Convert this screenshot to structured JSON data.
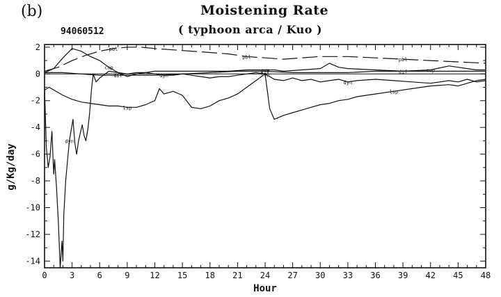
{
  "panel_label": "(b)",
  "id_label": "94060512",
  "chart_data": {
    "type": "line",
    "title": "Moistening Rate",
    "subtitle": "( typhoon arca / Kuo )",
    "xlabel": "Hour",
    "ylabel": "g/Kg/day",
    "xlim": [
      0,
      48
    ],
    "ylim": [
      -14.5,
      2.2
    ],
    "xticks": [
      0,
      3,
      6,
      9,
      12,
      15,
      18,
      21,
      24,
      27,
      30,
      33,
      36,
      39,
      42,
      45,
      48
    ],
    "yticks": [
      2,
      0,
      -2,
      -4,
      -6,
      -8,
      -10,
      -12,
      -14
    ],
    "grid": false,
    "legend": "none",
    "series": [
      {
        "name": "pbl",
        "style": "long-dash",
        "x": [
          0,
          1.5,
          3,
          4.5,
          6,
          7.5,
          9,
          10.5,
          12,
          14,
          16,
          18,
          20,
          22,
          24,
          26,
          28,
          30,
          33,
          36,
          39,
          42,
          45,
          48
        ],
        "y": [
          0.2,
          0.5,
          1.0,
          1.4,
          1.7,
          1.9,
          2.0,
          2.0,
          1.9,
          1.8,
          1.7,
          1.6,
          1.5,
          1.3,
          1.2,
          1.1,
          1.2,
          1.3,
          1.3,
          1.2,
          1.1,
          1.0,
          0.9,
          0.8
        ]
      },
      {
        "name": "cup",
        "style": "solid",
        "x": [
          0,
          1,
          2,
          3,
          4,
          5,
          6,
          7,
          8,
          9,
          10,
          11,
          12,
          14,
          16,
          18,
          20,
          22,
          24,
          25,
          26,
          28,
          30,
          31,
          32,
          33,
          36,
          39,
          42,
          44,
          45,
          46,
          47,
          48
        ],
        "y": [
          0.1,
          0.4,
          1.2,
          1.9,
          1.7,
          1.3,
          1.0,
          0.5,
          0.1,
          0.0,
          0.1,
          0.1,
          0.2,
          0.2,
          0.2,
          0.2,
          0.2,
          0.3,
          0.3,
          0.3,
          0.2,
          0.3,
          0.4,
          0.8,
          0.5,
          0.4,
          0.3,
          0.2,
          0.3,
          0.6,
          0.5,
          0.4,
          0.3,
          0.3
        ]
      },
      {
        "name": "dif",
        "style": "solid",
        "x": [
          0,
          2,
          4,
          6,
          8,
          10,
          12,
          15,
          18,
          21,
          24,
          27,
          30,
          33,
          36,
          39,
          42,
          45,
          48
        ],
        "y": [
          0.1,
          0.1,
          0.0,
          -0.1,
          -0.1,
          -0.1,
          -0.1,
          0.0,
          0.1,
          0.2,
          0.2,
          0.1,
          0.1,
          0.1,
          0.2,
          0.2,
          0.2,
          0.2,
          0.2
        ]
      },
      {
        "name": "lsp",
        "style": "solid",
        "x": [
          0,
          0.5,
          1,
          2,
          3,
          4,
          5,
          6,
          7,
          8,
          9,
          10,
          11,
          12,
          12.5,
          13,
          14,
          15,
          16,
          17,
          18,
          19,
          20,
          21,
          22,
          23,
          24,
          24.5,
          25,
          26,
          27,
          28,
          29,
          30,
          31,
          32,
          33,
          34,
          35,
          36,
          38,
          40,
          42,
          44,
          45,
          46,
          47,
          48
        ],
        "y": [
          -1.2,
          -1.0,
          -1.2,
          -1.6,
          -1.9,
          -2.1,
          -2.2,
          -2.3,
          -2.4,
          -2.4,
          -2.5,
          -2.5,
          -2.3,
          -2.0,
          -1.1,
          -1.5,
          -1.3,
          -1.6,
          -2.5,
          -2.6,
          -2.4,
          -2.0,
          -1.8,
          -1.5,
          -1.0,
          -0.5,
          0.0,
          -2.6,
          -3.4,
          -3.1,
          -2.9,
          -2.7,
          -2.5,
          -2.3,
          -2.2,
          -2.0,
          -1.9,
          -1.7,
          -1.6,
          -1.5,
          -1.3,
          -1.1,
          -0.9,
          -0.8,
          -0.9,
          -0.7,
          -0.5,
          -0.4
        ]
      },
      {
        "name": "dyn",
        "style": "solid",
        "x": [
          0,
          0.2,
          0.4,
          0.6,
          0.8,
          1.0,
          1.1,
          1.3,
          1.5,
          1.7,
          1.9,
          2.0,
          2.1,
          2.3,
          2.5,
          2.7,
          2.9,
          3.1,
          3.3,
          3.5,
          3.7,
          3.9,
          4.1,
          4.3,
          4.5,
          4.7,
          4.9,
          5.1,
          5.3,
          5.6,
          6,
          7,
          8,
          9,
          10,
          11,
          12,
          13,
          14,
          15,
          16,
          17,
          18,
          19,
          20,
          21,
          22,
          23,
          24,
          25,
          26,
          27,
          28,
          29,
          30,
          31,
          32,
          33,
          34,
          36,
          38,
          40,
          42,
          44,
          45,
          46,
          47,
          48
        ],
        "y": [
          -1.0,
          -5.5,
          -7.0,
          -6.2,
          -4.3,
          -7.5,
          -6.4,
          -8.5,
          -11.0,
          -14.5,
          -12.5,
          -14.0,
          -10.5,
          -8.0,
          -6.5,
          -5.0,
          -4.2,
          -3.4,
          -5.2,
          -6.0,
          -5.0,
          -4.4,
          -3.8,
          -4.6,
          -5.0,
          -4.2,
          -3.0,
          -1.2,
          0.0,
          -0.6,
          -0.3,
          0.2,
          0.1,
          -0.2,
          0.0,
          0.1,
          0.0,
          -0.1,
          -0.1,
          0.0,
          -0.1,
          -0.2,
          -0.3,
          -0.2,
          -0.2,
          -0.1,
          0.0,
          0.1,
          0.0,
          -0.4,
          -0.5,
          -0.3,
          -0.5,
          -0.4,
          -0.6,
          -0.5,
          -0.4,
          -0.6,
          -0.5,
          -0.4,
          -0.5,
          -0.6,
          -0.7,
          -0.5,
          -0.6,
          -0.4,
          -0.6,
          -0.5
        ]
      }
    ]
  }
}
